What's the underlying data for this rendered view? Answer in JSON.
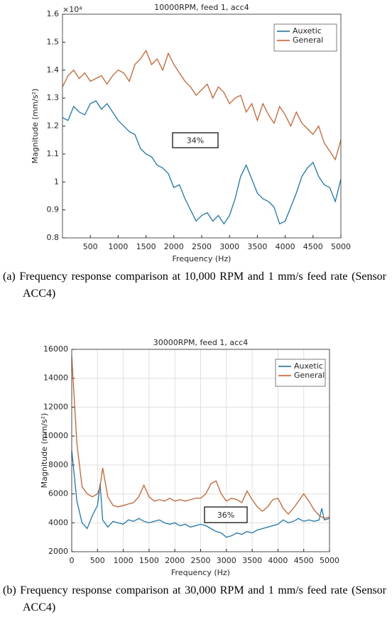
{
  "chart_data": [
    {
      "type": "line",
      "title": "10000RPM, feed 1, acc4",
      "x_label": "Frequency (Hz)",
      "y_label": "Magnitude (mm/s²)",
      "y_multiplier": "×10⁴",
      "xlim": [
        0,
        5000
      ],
      "xticks": [
        500,
        1000,
        1500,
        2000,
        2500,
        3000,
        3500,
        4000,
        4500,
        5000
      ],
      "ylim": [
        0.8,
        1.6
      ],
      "yticks": [
        0.8,
        0.9,
        1,
        1.1,
        1.2,
        1.3,
        1.4,
        1.5,
        1.6
      ],
      "grid": false,
      "legend": "northeast",
      "annotation": "34%",
      "caption": "(a) Frequency response comparison at 10,000 RPM and 1 mm/s feed rate (Sensor ACC4)",
      "x": [
        0,
        100,
        200,
        300,
        400,
        500,
        600,
        700,
        800,
        900,
        1000,
        1100,
        1200,
        1300,
        1400,
        1500,
        1600,
        1700,
        1800,
        1900,
        2000,
        2100,
        2200,
        2300,
        2400,
        2500,
        2600,
        2700,
        2800,
        2900,
        3000,
        3100,
        3200,
        3300,
        3400,
        3500,
        3600,
        3700,
        3800,
        3900,
        4000,
        4100,
        4200,
        4300,
        4400,
        4500,
        4600,
        4700,
        4800,
        4900,
        5000
      ],
      "series": [
        {
          "name": "Auxetic",
          "color": "#0072bd",
          "values": [
            1.23,
            1.22,
            1.27,
            1.25,
            1.24,
            1.28,
            1.29,
            1.26,
            1.28,
            1.25,
            1.22,
            1.2,
            1.18,
            1.17,
            1.12,
            1.1,
            1.09,
            1.06,
            1.05,
            1.03,
            0.98,
            0.99,
            0.94,
            0.9,
            0.86,
            0.88,
            0.89,
            0.86,
            0.88,
            0.85,
            0.88,
            0.94,
            1.02,
            1.06,
            1.01,
            0.96,
            0.94,
            0.93,
            0.91,
            0.85,
            0.86,
            0.91,
            0.96,
            1.02,
            1.05,
            1.07,
            1.02,
            0.99,
            0.98,
            0.93,
            1.01
          ]
        },
        {
          "name": "General",
          "color": "#d95319",
          "values": [
            1.34,
            1.38,
            1.4,
            1.37,
            1.39,
            1.36,
            1.37,
            1.38,
            1.35,
            1.38,
            1.4,
            1.39,
            1.36,
            1.42,
            1.44,
            1.47,
            1.42,
            1.44,
            1.4,
            1.46,
            1.42,
            1.39,
            1.36,
            1.34,
            1.31,
            1.33,
            1.35,
            1.3,
            1.34,
            1.32,
            1.28,
            1.3,
            1.31,
            1.25,
            1.28,
            1.22,
            1.28,
            1.24,
            1.21,
            1.27,
            1.24,
            1.2,
            1.25,
            1.21,
            1.19,
            1.17,
            1.2,
            1.14,
            1.11,
            1.08,
            1.15
          ]
        }
      ]
    },
    {
      "type": "line",
      "title": "30000RPM, feed 1, acc4",
      "x_label": "Frequency (Hz)",
      "y_label": "Magnitude (mm/s²)",
      "xlim": [
        0,
        5000
      ],
      "xticks": [
        0,
        500,
        1000,
        1500,
        2000,
        2500,
        3000,
        3500,
        4000,
        4500,
        5000
      ],
      "ylim": [
        2000,
        16000
      ],
      "yticks": [
        2000,
        4000,
        6000,
        8000,
        10000,
        12000,
        14000,
        16000
      ],
      "grid": true,
      "legend": "northeast",
      "annotation": "36%",
      "caption": "(b) Frequency response comparison at 30,000 RPM and 1 mm/s feed rate (Sensor ACC4)",
      "x": [
        0,
        100,
        200,
        300,
        400,
        500,
        550,
        600,
        700,
        800,
        900,
        1000,
        1100,
        1200,
        1300,
        1400,
        1500,
        1600,
        1700,
        1800,
        1900,
        2000,
        2100,
        2200,
        2300,
        2400,
        2500,
        2600,
        2700,
        2800,
        2900,
        3000,
        3100,
        3200,
        3300,
        3400,
        3500,
        3600,
        3700,
        3800,
        3900,
        4000,
        4100,
        4200,
        4300,
        4400,
        4500,
        4600,
        4700,
        4800,
        4850,
        4900,
        5000
      ],
      "series": [
        {
          "name": "Auxetic",
          "color": "#0072bd",
          "values": [
            9000,
            5500,
            4000,
            3600,
            4500,
            5200,
            6700,
            4200,
            3700,
            4100,
            4000,
            3900,
            4200,
            4100,
            4300,
            4100,
            4000,
            4100,
            4200,
            4000,
            3900,
            4000,
            3800,
            3900,
            3700,
            3800,
            3900,
            3800,
            3600,
            3400,
            3300,
            3000,
            3100,
            3300,
            3200,
            3400,
            3300,
            3500,
            3600,
            3700,
            3800,
            3900,
            4200,
            4000,
            4100,
            4300,
            4100,
            4200,
            4100,
            4200,
            5000,
            4200,
            4300
          ]
        },
        {
          "name": "General",
          "color": "#d95319",
          "values": [
            15500,
            9500,
            6500,
            6000,
            5800,
            6000,
            6500,
            7800,
            5800,
            5200,
            5100,
            5200,
            5300,
            5400,
            5800,
            6600,
            5800,
            5500,
            5600,
            5500,
            5700,
            5500,
            5600,
            5500,
            5600,
            5700,
            5700,
            6000,
            6700,
            6900,
            6000,
            5500,
            5700,
            5600,
            5400,
            6200,
            5600,
            5100,
            4800,
            5100,
            5600,
            5700,
            5000,
            4600,
            5000,
            5500,
            6000,
            5500,
            4900,
            4500,
            4400,
            4300,
            4400
          ]
        }
      ]
    }
  ]
}
